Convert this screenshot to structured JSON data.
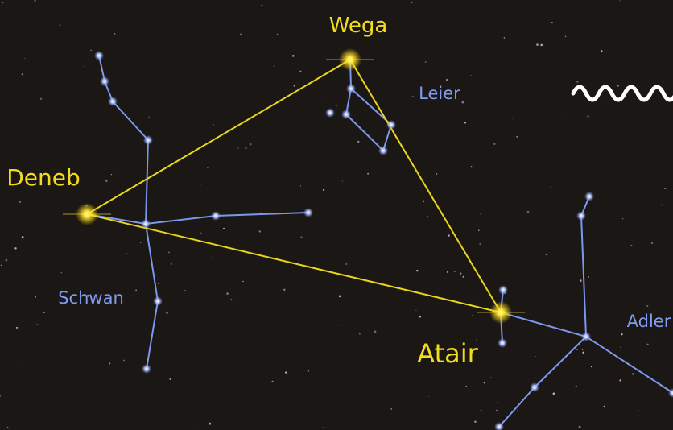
{
  "stars": [
    {
      "label": "Wega"
    },
    {
      "label": "Deneb"
    },
    {
      "label": "Atair"
    }
  ],
  "constellations": [
    {
      "label": "Leier"
    },
    {
      "label": "Schwan"
    },
    {
      "label": "Adler"
    }
  ]
}
